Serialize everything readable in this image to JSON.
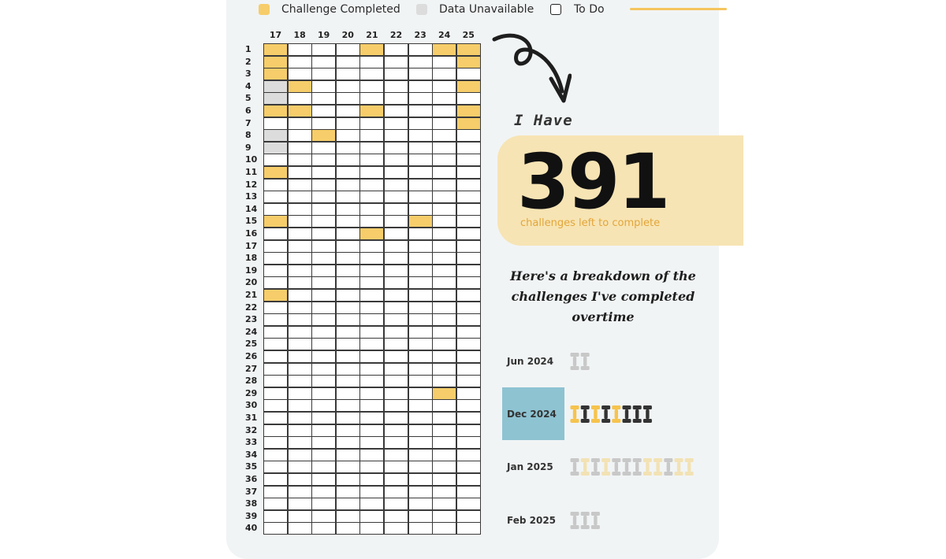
{
  "legend": {
    "completed_label": "Challenge Completed",
    "unavailable_label": "Data Unavailable",
    "todo_label": "To Do"
  },
  "colors": {
    "completed": "#f6cd6a",
    "unavailable": "#dcdcdc",
    "todo": "#ffffff",
    "highlight": "#8ec3d2",
    "stat_box": "#f7e4b4",
    "accent_text": "#e2a63a"
  },
  "grid": {
    "columns": [
      "17",
      "18",
      "19",
      "20",
      "21",
      "22",
      "23",
      "24",
      "25"
    ],
    "rows": [
      "1",
      "2",
      "3",
      "4",
      "5",
      "6",
      "7",
      "8",
      "9",
      "10",
      "11",
      "12",
      "13",
      "14",
      "15",
      "16",
      "17",
      "18",
      "19",
      "20",
      "21",
      "22",
      "23",
      "24",
      "25",
      "26",
      "27",
      "28",
      "29",
      "30",
      "31",
      "32",
      "33",
      "34",
      "35",
      "36",
      "37",
      "38",
      "39",
      "40"
    ],
    "status_codes": "c = challenge completed, u = data unavailable, t = to do",
    "cells": [
      [
        "c",
        "t",
        "t",
        "t",
        "c",
        "t",
        "t",
        "c",
        "c"
      ],
      [
        "c",
        "t",
        "t",
        "t",
        "t",
        "t",
        "t",
        "t",
        "c"
      ],
      [
        "c",
        "t",
        "t",
        "t",
        "t",
        "t",
        "t",
        "t",
        "t"
      ],
      [
        "u",
        "c",
        "t",
        "t",
        "t",
        "t",
        "t",
        "t",
        "c"
      ],
      [
        "u",
        "t",
        "t",
        "t",
        "t",
        "t",
        "t",
        "t",
        "t"
      ],
      [
        "c",
        "c",
        "t",
        "t",
        "c",
        "t",
        "t",
        "t",
        "c"
      ],
      [
        "t",
        "t",
        "t",
        "t",
        "t",
        "t",
        "t",
        "t",
        "c"
      ],
      [
        "u",
        "t",
        "c",
        "t",
        "t",
        "t",
        "t",
        "t",
        "t"
      ],
      [
        "u",
        "t",
        "t",
        "t",
        "t",
        "t",
        "t",
        "t",
        "t"
      ],
      [
        "t",
        "t",
        "t",
        "t",
        "t",
        "t",
        "t",
        "t",
        "t"
      ],
      [
        "c",
        "t",
        "t",
        "t",
        "t",
        "t",
        "t",
        "t",
        "t"
      ],
      [
        "t",
        "t",
        "t",
        "t",
        "t",
        "t",
        "t",
        "t",
        "t"
      ],
      [
        "t",
        "t",
        "t",
        "t",
        "t",
        "t",
        "t",
        "t",
        "t"
      ],
      [
        "t",
        "t",
        "t",
        "t",
        "t",
        "t",
        "t",
        "t",
        "t"
      ],
      [
        "c",
        "t",
        "t",
        "t",
        "t",
        "t",
        "c",
        "t",
        "t"
      ],
      [
        "t",
        "t",
        "t",
        "t",
        "c",
        "t",
        "t",
        "t",
        "t"
      ],
      [
        "t",
        "t",
        "t",
        "t",
        "t",
        "t",
        "t",
        "t",
        "t"
      ],
      [
        "t",
        "t",
        "t",
        "t",
        "t",
        "t",
        "t",
        "t",
        "t"
      ],
      [
        "t",
        "t",
        "t",
        "t",
        "t",
        "t",
        "t",
        "t",
        "t"
      ],
      [
        "t",
        "t",
        "t",
        "t",
        "t",
        "t",
        "t",
        "t",
        "t"
      ],
      [
        "c",
        "t",
        "t",
        "t",
        "t",
        "t",
        "t",
        "t",
        "t"
      ],
      [
        "t",
        "t",
        "t",
        "t",
        "t",
        "t",
        "t",
        "t",
        "t"
      ],
      [
        "t",
        "t",
        "t",
        "t",
        "t",
        "t",
        "t",
        "t",
        "t"
      ],
      [
        "t",
        "t",
        "t",
        "t",
        "t",
        "t",
        "t",
        "t",
        "t"
      ],
      [
        "t",
        "t",
        "t",
        "t",
        "t",
        "t",
        "t",
        "t",
        "t"
      ],
      [
        "t",
        "t",
        "t",
        "t",
        "t",
        "t",
        "t",
        "t",
        "t"
      ],
      [
        "t",
        "t",
        "t",
        "t",
        "t",
        "t",
        "t",
        "t",
        "t"
      ],
      [
        "t",
        "t",
        "t",
        "t",
        "t",
        "t",
        "t",
        "t",
        "t"
      ],
      [
        "t",
        "t",
        "t",
        "t",
        "t",
        "t",
        "t",
        "c",
        "t"
      ],
      [
        "t",
        "t",
        "t",
        "t",
        "t",
        "t",
        "t",
        "t",
        "t"
      ],
      [
        "t",
        "t",
        "t",
        "t",
        "t",
        "t",
        "t",
        "t",
        "t"
      ],
      [
        "t",
        "t",
        "t",
        "t",
        "t",
        "t",
        "t",
        "t",
        "t"
      ],
      [
        "t",
        "t",
        "t",
        "t",
        "t",
        "t",
        "t",
        "t",
        "t"
      ],
      [
        "t",
        "t",
        "t",
        "t",
        "t",
        "t",
        "t",
        "t",
        "t"
      ],
      [
        "t",
        "t",
        "t",
        "t",
        "t",
        "t",
        "t",
        "t",
        "t"
      ],
      [
        "t",
        "t",
        "t",
        "t",
        "t",
        "t",
        "t",
        "t",
        "t"
      ],
      [
        "t",
        "t",
        "t",
        "t",
        "t",
        "t",
        "t",
        "t",
        "t"
      ],
      [
        "t",
        "t",
        "t",
        "t",
        "t",
        "t",
        "t",
        "t",
        "t"
      ],
      [
        "t",
        "t",
        "t",
        "t",
        "t",
        "t",
        "t",
        "t",
        "t"
      ],
      [
        "t",
        "t",
        "t",
        "t",
        "t",
        "t",
        "t",
        "t",
        "t"
      ]
    ]
  },
  "arrow_icon": "curly-arrow-down-icon",
  "stat": {
    "intro": "I Have",
    "number": "391",
    "caption": "challenges left to complete"
  },
  "breakdown": {
    "title_line1": "Here's a breakdown of the",
    "title_line2": "challenges I've completed",
    "title_line3": "overtime",
    "icon": "dumbbell-icon",
    "months": [
      {
        "label": "Jun 2024",
        "highlighted": false,
        "icons": [
          "#c8c8c8",
          "#c8c8c8"
        ]
      },
      {
        "label": "Dec 2024",
        "highlighted": true,
        "icons": [
          "#f6c34d",
          "#333333",
          "#f6c34d",
          "#333333",
          "#f6c34d",
          "#333333",
          "#333333",
          "#333333"
        ]
      },
      {
        "label": "Jan 2025",
        "highlighted": false,
        "icons": [
          "#c8c8c8",
          "#f2e2b4",
          "#c8c8c8",
          "#f2e2b4",
          "#c8c8c8",
          "#c8c8c8",
          "#c8c8c8",
          "#f2e2b4",
          "#f2e2b4",
          "#c8c8c8",
          "#f2e2b4",
          "#f2e2b4"
        ]
      },
      {
        "label": "Feb 2025",
        "highlighted": false,
        "icons": [
          "#c8c8c8",
          "#c8c8c8",
          "#c8c8c8"
        ]
      }
    ]
  }
}
